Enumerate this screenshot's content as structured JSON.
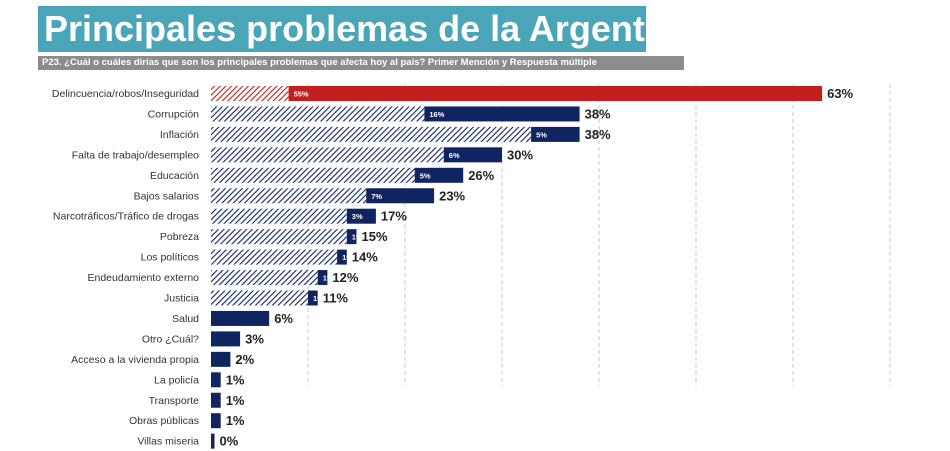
{
  "title": "Principales problemas de la Argentina",
  "subtitle": "P23. ¿Cuál o cuáles dirías que son los principales problemas que afecta hoy al país? Primer Mención y Respuesta múltiple",
  "colors": {
    "title_bg": "#4aa5b8",
    "subtitle_bg": "#8c8c8c",
    "bar_main": "#0f2562",
    "bar_highlight": "#c41f1f"
  },
  "chart_data": {
    "type": "bar",
    "orientation": "horizontal",
    "categories": [
      "Delincuencia/robos/Inseguridad",
      "Corrupción",
      "Inflación",
      "Falta de trabajo/desempleo",
      "Educación",
      "Bajos salarios",
      "Narcotráficos/Tráfico de drogas",
      "Pobreza",
      "Los políticos",
      "Endeudamiento externo",
      "Justicia",
      "Salud",
      "Otro ¿Cuál?",
      "Acceso a la vivienda propia",
      "La policía",
      "Transporte",
      "Obras públicas",
      "Villas miseria"
    ],
    "series": [
      {
        "values": [
          55,
          16,
          5,
          6,
          5,
          7,
          3,
          1,
          1,
          1,
          1,
          null,
          null,
          null,
          null,
          null,
          null,
          null
        ],
        "labels": [
          "55%",
          "16%",
          "5%",
          "6%",
          "5%",
          "7%",
          "3%",
          "1%",
          "1%",
          "1%",
          "1%",
          "",
          "",
          "",
          "",
          "",
          "",
          ""
        ]
      },
      {
        "values": [
          63,
          38,
          38,
          30,
          26,
          23,
          17,
          15,
          14,
          12,
          11,
          6,
          3,
          2,
          1,
          1,
          1,
          0
        ],
        "labels": [
          "63%",
          "38%",
          "38%",
          "30%",
          "26%",
          "23%",
          "17%",
          "15%",
          "14%",
          "12%",
          "11%",
          "6%",
          "3%",
          "2%",
          "1%",
          "1%",
          "1%",
          "0%"
        ]
      }
    ],
    "highlight_index": 0,
    "xlim": [
      0,
      100
    ],
    "grid": true
  }
}
